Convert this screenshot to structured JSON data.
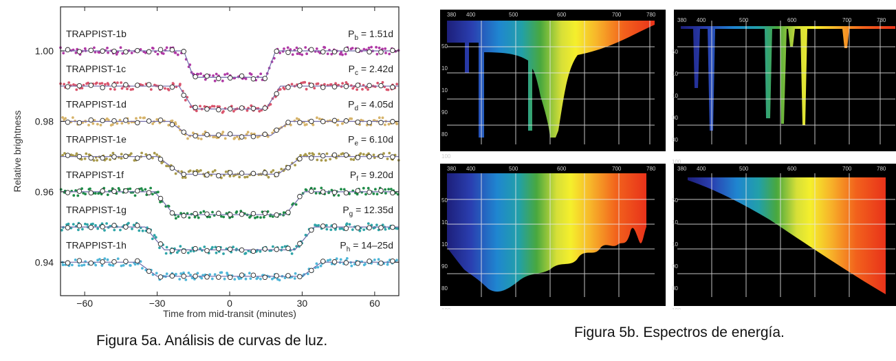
{
  "figure_a": {
    "caption": "Figura 5a. Análisis de curvas de luz.",
    "chart_data": {
      "type": "scatter",
      "xlabel": "Time from mid-transit (minutes)",
      "ylabel": "Relative brightness",
      "xlim": [
        -70,
        70
      ],
      "ylim": [
        0.9305,
        1.0125
      ],
      "xticks": [
        -60,
        -30,
        0,
        30,
        60
      ],
      "yticks": [
        0.94,
        0.96,
        0.98,
        1.0
      ],
      "ytick_labels": [
        "0.94",
        "0.96",
        "0.98",
        "1.00"
      ],
      "series": [
        {
          "name": "TRAPPIST-1b",
          "period_sub": "b",
          "period_value": " = 1.51d",
          "color": "#b03aa6",
          "baseline": 1.0,
          "depth": 0.0075,
          "t_in": 17,
          "t_ramp": 2
        },
        {
          "name": "TRAPPIST-1c",
          "period_sub": "c",
          "period_value": " = 2.42d",
          "color": "#d9556d",
          "baseline": 0.99,
          "depth": 0.0065,
          "t_in": 18,
          "t_ramp": 3
        },
        {
          "name": "TRAPPIST-1d",
          "period_sub": "d",
          "period_value": " = 4.05d",
          "color": "#d6b36a",
          "baseline": 0.98,
          "depth": 0.004,
          "t_in": 21,
          "t_ramp": 4
        },
        {
          "name": "TRAPPIST-1e",
          "period_sub": "e",
          "period_value": " = 6.10d",
          "color": "#a8994a",
          "baseline": 0.97,
          "depth": 0.005,
          "t_in": 25,
          "t_ramp": 5
        },
        {
          "name": "TRAPPIST-1f",
          "period_sub": "f",
          "period_value": " = 9.20d",
          "color": "#1f8c48",
          "baseline": 0.96,
          "depth": 0.0065,
          "t_in": 27,
          "t_ramp": 4
        },
        {
          "name": "TRAPPIST-1g",
          "period_sub": "g",
          "period_value": " = 12.35d",
          "color": "#2fa5a8",
          "baseline": 0.95,
          "depth": 0.0065,
          "t_in": 31,
          "t_ramp": 4
        },
        {
          "name": "TRAPPIST-1h",
          "period_sub": "h",
          "period_value": " = 14–25d",
          "color": "#4fb6d8",
          "baseline": 0.94,
          "depth": 0.004,
          "t_in": 34,
          "t_ramp": 4
        }
      ],
      "period_symbol": "P"
    }
  },
  "figure_b": {
    "caption": "Figura 5b. Espectros de energía.",
    "panels": [
      {
        "name": "absorption-spectrum-a",
        "top_labels": [
          "380",
          "400",
          "500",
          "600",
          "700",
          "780"
        ]
      },
      {
        "name": "absorption-spectrum-b",
        "top_labels": [
          "380",
          "400",
          "500",
          "600",
          "700",
          "780"
        ]
      },
      {
        "name": "emission-spectrum-a",
        "top_labels": [
          "380",
          "400",
          "500",
          "600",
          "700",
          "780"
        ]
      },
      {
        "name": "emission-spectrum-b",
        "top_labels": [
          "380",
          "400",
          "500",
          "600",
          "700",
          "780"
        ]
      }
    ],
    "side_labels": [
      "50",
      "10",
      "10",
      "90",
      "80",
      "100"
    ]
  }
}
